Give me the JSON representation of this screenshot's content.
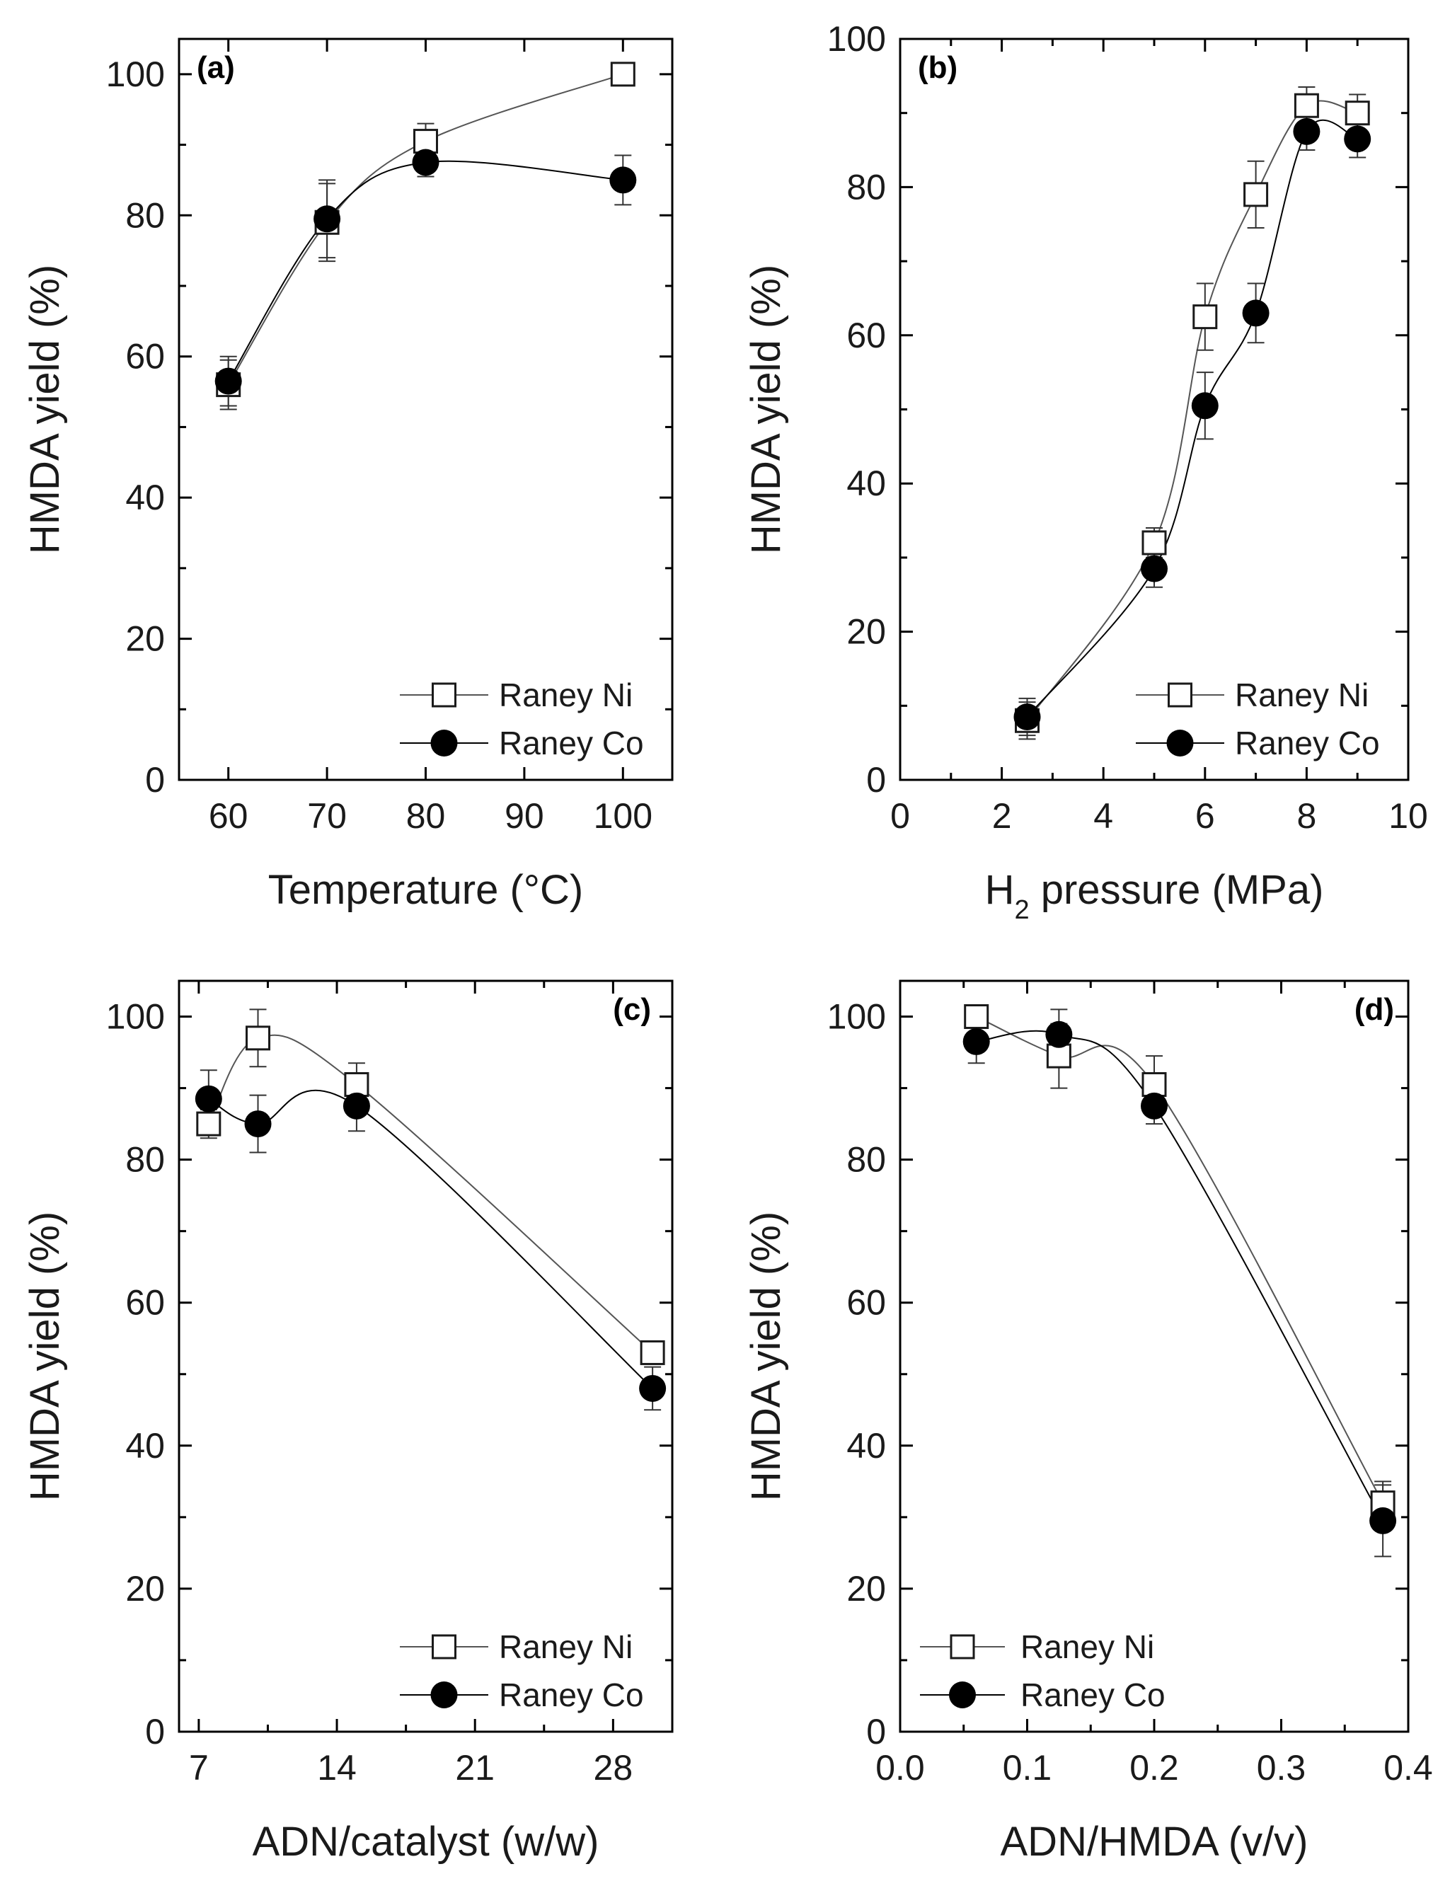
{
  "colors": {
    "ni": "#555555",
    "co": "#000000",
    "axis": "#000000"
  },
  "chart_data": [
    {
      "type": "scatter",
      "panel_label": "(a)",
      "xlabel": "Temperature (°C)",
      "ylabel": "HMDA yield (%)",
      "xlim": [
        55,
        105
      ],
      "ylim": [
        0,
        105
      ],
      "xticks": [
        60,
        70,
        80,
        90,
        100
      ],
      "yticks": [
        0,
        20,
        40,
        60,
        80,
        100
      ],
      "xminor": [],
      "yminor": [
        10,
        30,
        50,
        70,
        90
      ],
      "legend_position": "bottom-right",
      "series": [
        {
          "name": "Raney Ni",
          "marker": "open-square",
          "x": [
            60,
            70,
            80,
            100
          ],
          "y": [
            56,
            79,
            90.5,
            100
          ],
          "err": [
            3.5,
            5.5,
            2.5,
            0
          ]
        },
        {
          "name": "Raney Co",
          "marker": "filled-circle",
          "x": [
            60,
            70,
            80,
            100
          ],
          "y": [
            56.5,
            79.5,
            87.5,
            85
          ],
          "err": [
            3.5,
            5.5,
            2.0,
            3.5
          ]
        }
      ]
    },
    {
      "type": "scatter",
      "panel_label": "(b)",
      "xlabel_main": "H",
      "xlabel_sub": "2",
      "xlabel_rest": " pressure (MPa)",
      "ylabel": "HMDA yield (%)",
      "xlim": [
        0,
        10
      ],
      "ylim": [
        0,
        100
      ],
      "xticks": [
        0,
        2,
        4,
        6,
        8,
        10
      ],
      "yticks": [
        0,
        20,
        40,
        60,
        80,
        100
      ],
      "xminor": [
        1,
        3,
        5,
        7,
        9
      ],
      "yminor": [
        10,
        30,
        50,
        70,
        90
      ],
      "legend_position": "bottom-right",
      "series": [
        {
          "name": "Raney Ni",
          "marker": "open-square",
          "x": [
            2.5,
            5,
            6,
            7,
            8,
            9
          ],
          "y": [
            8,
            32,
            62.5,
            79,
            91,
            90
          ],
          "err": [
            2.5,
            2.0,
            4.5,
            4.5,
            2.5,
            2.5
          ]
        },
        {
          "name": "Raney Co",
          "marker": "filled-circle",
          "x": [
            2.5,
            5,
            6,
            7,
            8,
            9
          ],
          "y": [
            8.5,
            28.5,
            50.5,
            63,
            87.5,
            86.5
          ],
          "err": [
            2.5,
            2.5,
            4.5,
            4.0,
            2.5,
            2.5
          ]
        }
      ]
    },
    {
      "type": "scatter",
      "panel_label": "(c)",
      "xlabel": "ADN/catalyst (w/w)",
      "ylabel": "HMDA yield (%)",
      "xlim": [
        6,
        31
      ],
      "ylim": [
        0,
        105
      ],
      "xticks": [
        7,
        14,
        21,
        28
      ],
      "yticks": [
        0,
        20,
        40,
        60,
        80,
        100
      ],
      "xminor": [
        10.5,
        17.5,
        24.5
      ],
      "yminor": [
        10,
        30,
        50,
        70,
        90
      ],
      "legend_position": "bottom-right",
      "series": [
        {
          "name": "Raney Ni",
          "marker": "open-square",
          "x": [
            7.5,
            10,
            15,
            30
          ],
          "y": [
            85,
            97,
            90.5,
            53
          ],
          "err": [
            2.0,
            4.0,
            3.0,
            0
          ]
        },
        {
          "name": "Raney Co",
          "marker": "filled-circle",
          "x": [
            7.5,
            10,
            15,
            30
          ],
          "y": [
            88.5,
            85,
            87.5,
            48
          ],
          "err": [
            4.0,
            4.0,
            3.5,
            3.0
          ]
        }
      ]
    },
    {
      "type": "scatter",
      "panel_label": "(d)",
      "xlabel": "ADN/HMDA (v/v)",
      "ylabel": "HMDA yield (%)",
      "xlim": [
        0.0,
        0.4
      ],
      "ylim": [
        0,
        105
      ],
      "xticks": [
        0.0,
        0.1,
        0.2,
        0.3,
        0.4
      ],
      "yticks": [
        0,
        20,
        40,
        60,
        80,
        100
      ],
      "xminor": [
        0.05,
        0.15,
        0.25,
        0.35
      ],
      "yminor": [
        10,
        30,
        50,
        70,
        90
      ],
      "legend_position": "bottom-left",
      "series": [
        {
          "name": "Raney Ni",
          "marker": "open-square",
          "x": [
            0.06,
            0.125,
            0.2,
            0.38
          ],
          "y": [
            100,
            94.5,
            90.5,
            32
          ],
          "err": [
            0,
            4.5,
            4.0,
            3.0
          ]
        },
        {
          "name": "Raney Co",
          "marker": "filled-circle",
          "x": [
            0.06,
            0.125,
            0.2,
            0.38
          ],
          "y": [
            96.5,
            97.5,
            87.5,
            29.5
          ],
          "err": [
            3.0,
            3.5,
            2.5,
            5.0
          ]
        }
      ]
    }
  ]
}
